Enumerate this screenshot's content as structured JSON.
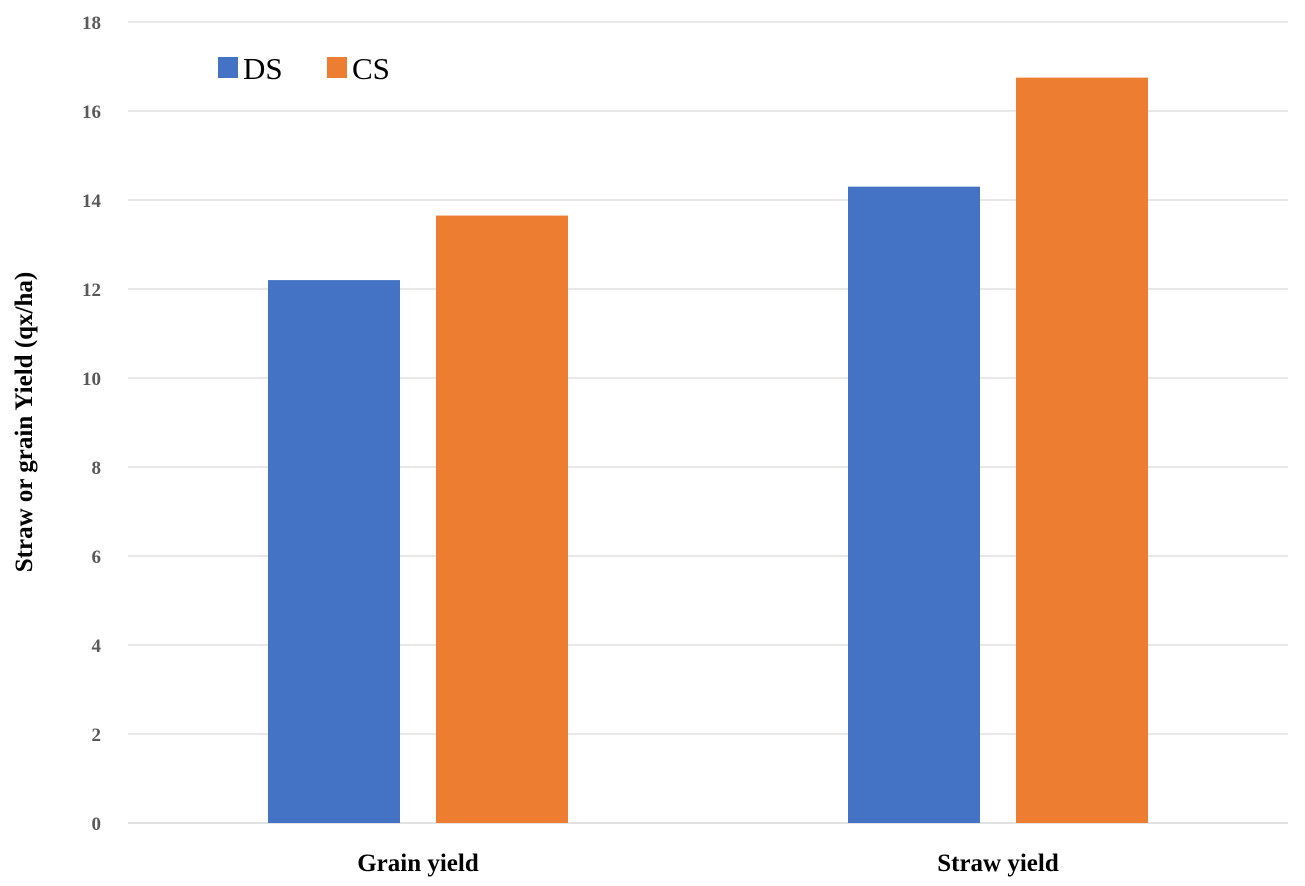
{
  "chart_data": {
    "type": "bar",
    "title": "",
    "xlabel": "",
    "ylabel": "Straw or grain Yield (qx/ha)",
    "categories": [
      "Grain yield",
      "Straw yield"
    ],
    "series": [
      {
        "name": "DS",
        "values": [
          12.2,
          14.3
        ],
        "color": "#4472c4"
      },
      {
        "name": "CS",
        "values": [
          13.65,
          16.75
        ],
        "color": "#ed7d31"
      }
    ],
    "ylim": [
      0,
      18
    ],
    "yticks": [
      0,
      2,
      4,
      6,
      8,
      10,
      12,
      14,
      16,
      18
    ],
    "grid": true,
    "legend_position": "top-left"
  }
}
